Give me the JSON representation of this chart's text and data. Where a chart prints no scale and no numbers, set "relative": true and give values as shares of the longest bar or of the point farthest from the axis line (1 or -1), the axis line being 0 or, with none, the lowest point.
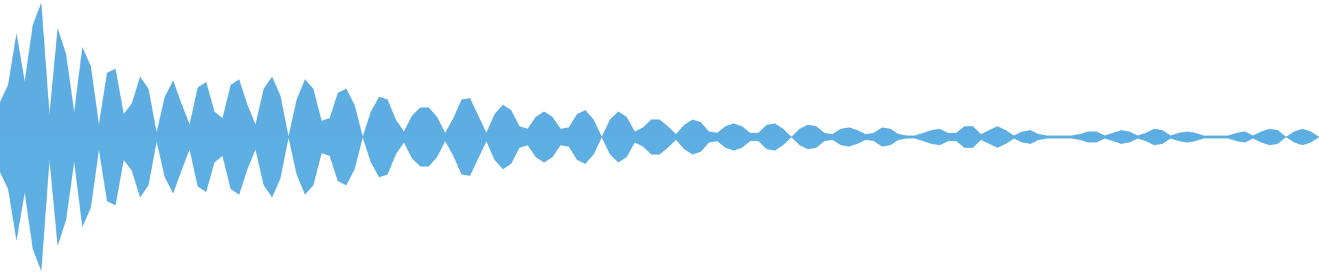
{
  "chart_data": {
    "type": "area",
    "relative": true,
    "ref_lines": [
      {
        "axis": "y",
        "value": 0,
        "color": "#5dade2"
      }
    ],
    "categories": [
      null,
      null,
      null,
      null,
      null,
      null,
      null,
      null,
      null,
      null,
      null,
      null,
      null,
      null,
      null,
      null,
      null,
      null,
      null,
      null,
      null,
      null,
      null,
      null,
      null,
      null,
      null,
      null,
      null,
      null,
      null,
      null,
      null,
      null,
      null,
      null,
      null,
      null,
      null,
      null,
      null,
      null,
      null,
      null,
      null,
      null,
      null,
      null,
      null,
      null,
      null,
      null,
      null,
      null,
      null,
      null,
      null,
      null,
      null,
      null,
      null,
      null,
      null,
      null,
      null,
      null,
      null,
      null,
      null,
      null,
      null,
      null,
      null,
      null,
      null,
      null,
      null,
      null,
      null,
      null,
      null,
      null,
      null,
      null,
      null,
      null,
      null,
      null,
      null,
      null,
      null,
      null,
      null,
      null,
      null,
      null,
      null,
      null,
      null,
      null,
      null,
      null,
      null,
      null,
      null,
      null,
      null,
      null,
      null,
      null,
      null,
      null,
      null,
      null,
      null,
      null,
      null,
      null,
      null,
      null,
      null,
      null,
      null,
      null,
      null,
      null,
      null,
      null,
      null,
      null,
      null,
      null,
      null,
      null,
      null,
      null,
      null,
      null,
      null,
      null,
      null,
      null,
      null,
      null,
      null,
      null,
      null,
      null,
      null,
      null,
      null,
      null,
      null,
      null,
      null,
      null,
      null,
      null,
      null,
      null,
      null
    ],
    "series": [
      {
        "color": "#5dade2",
        "values": [
          0.26,
          0.39,
          0.77,
          0.41,
          0.84,
          1,
          0.16,
          0.81,
          0.62,
          0.18,
          0.67,
          0.53,
          0.09,
          0.48,
          0.51,
          0.17,
          0.25,
          0.45,
          0.36,
          0.03,
          0.3,
          0.42,
          0.25,
          0.09,
          0.37,
          0.41,
          0.19,
          0.14,
          0.39,
          0.43,
          0.24,
          0.09,
          0.36,
          0.45,
          0.31,
          0,
          0.28,
          0.43,
          0.36,
          0.12,
          0.14,
          0.33,
          0.36,
          0.24,
          0,
          0.19,
          0.3,
          0.28,
          0.13,
          0.04,
          0.16,
          0.22,
          0.22,
          0.15,
          0.03,
          0.14,
          0.28,
          0.29,
          0.16,
          0.03,
          0.17,
          0.24,
          0.2,
          0.08,
          0.06,
          0.15,
          0.19,
          0.15,
          0.06,
          0.07,
          0.17,
          0.2,
          0.13,
          0,
          0.13,
          0.19,
          0.15,
          0.04,
          0.07,
          0.13,
          0.13,
          0.08,
          0.02,
          0.09,
          0.13,
          0.11,
          0.04,
          0.03,
          0.08,
          0.1,
          0.08,
          0.03,
          0.03,
          0.09,
          0.1,
          0.06,
          0,
          0.06,
          0.09,
          0.08,
          0.03,
          0.02,
          0.06,
          0.07,
          0.05,
          0.02,
          0.03,
          0.07,
          0.06,
          0.02,
          0.01,
          0.01,
          0.03,
          0.05,
          0.06,
          0.03,
          0.03,
          0.08,
          0.08,
          0.02,
          0.05,
          0.08,
          0.05,
          0.01,
          0.04,
          0.05,
          0.02,
          0.01,
          0.01,
          0.01,
          0.01,
          0.02,
          0.04,
          0.04,
          0.01,
          0.03,
          0.05,
          0.04,
          0.01,
          0.03,
          0.06,
          0.05,
          0.01,
          0.03,
          0.04,
          0.03,
          0.01,
          0.01,
          0.01,
          0.01,
          0.03,
          0.04,
          0.01,
          0.04,
          0.06,
          0.05,
          0,
          0.04,
          0.06,
          0.04,
          0
        ]
      },
      {
        "color": "#5daee2",
        "values": [
          -0.26,
          -0.39,
          -0.77,
          -0.41,
          -0.84,
          -1,
          -0.16,
          -0.81,
          -0.62,
          -0.18,
          -0.67,
          -0.53,
          -0.09,
          -0.48,
          -0.51,
          -0.17,
          -0.25,
          -0.45,
          -0.36,
          -0.03,
          -0.3,
          -0.42,
          -0.25,
          -0.09,
          -0.37,
          -0.41,
          -0.19,
          -0.14,
          -0.39,
          -0.43,
          -0.24,
          -0.09,
          -0.36,
          -0.45,
          -0.31,
          0,
          -0.28,
          -0.43,
          -0.36,
          -0.12,
          -0.14,
          -0.33,
          -0.36,
          -0.24,
          0,
          -0.19,
          -0.3,
          -0.28,
          -0.13,
          -0.04,
          -0.16,
          -0.22,
          -0.22,
          -0.15,
          -0.03,
          -0.14,
          -0.28,
          -0.29,
          -0.16,
          -0.03,
          -0.17,
          -0.24,
          -0.2,
          -0.08,
          -0.06,
          -0.15,
          -0.19,
          -0.15,
          -0.06,
          -0.07,
          -0.17,
          -0.2,
          -0.13,
          0,
          -0.13,
          -0.19,
          -0.15,
          -0.04,
          -0.07,
          -0.13,
          -0.13,
          -0.08,
          -0.02,
          -0.09,
          -0.13,
          -0.11,
          -0.04,
          -0.03,
          -0.08,
          -0.1,
          -0.08,
          -0.03,
          -0.03,
          -0.09,
          -0.1,
          -0.06,
          0,
          -0.06,
          -0.09,
          -0.08,
          -0.03,
          -0.02,
          -0.06,
          -0.07,
          -0.05,
          -0.02,
          -0.03,
          -0.07,
          -0.06,
          -0.02,
          -0.01,
          -0.01,
          -0.03,
          -0.05,
          -0.06,
          -0.03,
          -0.03,
          -0.08,
          -0.08,
          -0.02,
          -0.05,
          -0.08,
          -0.05,
          -0.01,
          -0.04,
          -0.05,
          -0.02,
          -0.01,
          -0.01,
          -0.01,
          -0.01,
          -0.02,
          -0.04,
          -0.04,
          -0.01,
          -0.03,
          -0.05,
          -0.04,
          -0.01,
          -0.03,
          -0.06,
          -0.05,
          -0.01,
          -0.03,
          -0.04,
          -0.03,
          -0.01,
          -0.01,
          -0.01,
          -0.01,
          -0.03,
          -0.04,
          -0.01,
          -0.04,
          -0.06,
          -0.05,
          0,
          -0.04,
          -0.06,
          -0.04,
          0
        ]
      }
    ]
  }
}
